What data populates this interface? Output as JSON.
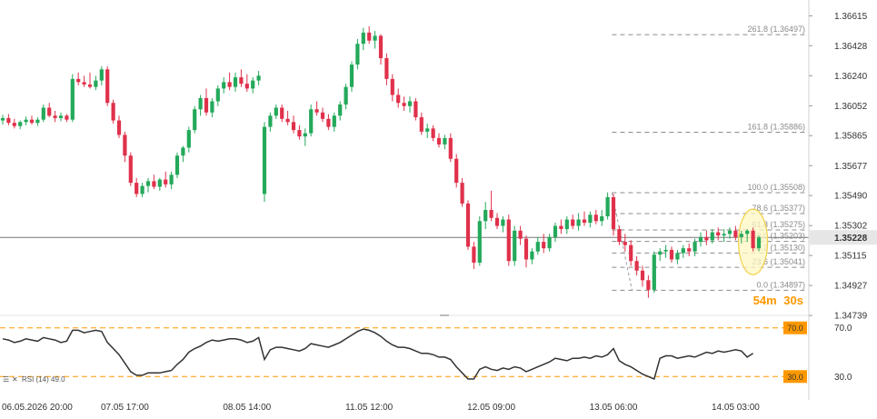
{
  "chart_data": {
    "type": "candlestick",
    "price_axis": {
      "ticks": [
        "1.36615",
        "1.36428",
        "1.36240",
        "1.36052",
        "1.35865",
        "1.35677",
        "1.35490",
        "1.35302",
        "1.35115",
        "1.34927",
        "1.34739"
      ],
      "range": [
        1.347,
        1.3668
      ]
    },
    "x_labels": [
      {
        "label": "06.05.2026 20:00",
        "index": 0
      },
      {
        "label": "07.05 17:00",
        "index": 21
      },
      {
        "label": "08.05 14:00",
        "index": 42
      },
      {
        "label": "11.05 12:00",
        "index": 63
      },
      {
        "label": "12.05 09:00",
        "index": 84
      },
      {
        "label": "13.05 06:00",
        "index": 105
      },
      {
        "label": "14.05 03:00",
        "index": 126
      }
    ],
    "current_price": {
      "value": 1.35228,
      "label": "1.35228"
    },
    "countdown": {
      "minutes": "54",
      "m": "m",
      "seconds": "30",
      "s": "s"
    },
    "fibonacci": {
      "x_start_index": 106,
      "x_end_index": 127,
      "levels": [
        {
          "label": "261.8 (1.36497)",
          "value": 1.36497
        },
        {
          "label": "161.8 (1.35886)",
          "value": 1.35886
        },
        {
          "label": "100.0 (1.35508)",
          "value": 1.35508
        },
        {
          "label": "78.6 (1.35377)",
          "value": 1.35377
        },
        {
          "label": "61.8 (1.35275)",
          "value": 1.35275
        },
        {
          "label": "50.0 (1.35203)",
          "value": 1.35203
        },
        {
          "label": "38.2 (1.35130)",
          "value": 1.3513
        },
        {
          "label": "23.6 (1.35041)",
          "value": 1.35041
        },
        {
          "label": "0.0 (1.34897)",
          "value": 1.34897
        }
      ]
    },
    "rsi": {
      "label": "RSI (14) 49.0",
      "upper": 70,
      "lower": 30,
      "upper_label": "70.0",
      "lower_label": "30.0",
      "tick_70": "70.0",
      "tick_30": "30.0",
      "range": [
        22,
        78
      ]
    },
    "candles": [
      [
        1.3596,
        1.35995,
        1.35935,
        1.35975
      ],
      [
        1.35975,
        1.36,
        1.3593,
        1.35945
      ],
      [
        1.35945,
        1.3597,
        1.3591,
        1.35925
      ],
      [
        1.35925,
        1.3596,
        1.35905,
        1.3595
      ],
      [
        1.3595,
        1.35985,
        1.3593,
        1.35965
      ],
      [
        1.35965,
        1.3599,
        1.35935,
        1.35945
      ],
      [
        1.35945,
        1.3598,
        1.35925,
        1.35965
      ],
      [
        1.35965,
        1.3606,
        1.3595,
        1.3604
      ],
      [
        1.3604,
        1.3607,
        1.3598,
        1.3599
      ],
      [
        1.3599,
        1.3602,
        1.3595,
        1.35975
      ],
      [
        1.35975,
        1.3601,
        1.35955,
        1.3599
      ],
      [
        1.3599,
        1.36,
        1.3595,
        1.35965
      ],
      [
        1.35965,
        1.3625,
        1.3595,
        1.3622
      ],
      [
        1.3622,
        1.3626,
        1.3618,
        1.362
      ],
      [
        1.362,
        1.3624,
        1.3617,
        1.36185
      ],
      [
        1.36185,
        1.3626,
        1.3616,
        1.3617
      ],
      [
        1.3617,
        1.3624,
        1.3615,
        1.3621
      ],
      [
        1.3621,
        1.363,
        1.3618,
        1.3628
      ],
      [
        1.3628,
        1.363,
        1.3605,
        1.3607
      ],
      [
        1.3607,
        1.3609,
        1.3594,
        1.3596
      ],
      [
        1.3596,
        1.3599,
        1.3585,
        1.3587
      ],
      [
        1.3587,
        1.3589,
        1.357,
        1.3574
      ],
      [
        1.3574,
        1.3576,
        1.3555,
        1.3557
      ],
      [
        1.3557,
        1.356,
        1.3548,
        1.355
      ],
      [
        1.355,
        1.3557,
        1.3548,
        1.3555
      ],
      [
        1.3555,
        1.356,
        1.3551,
        1.3558
      ],
      [
        1.3558,
        1.3562,
        1.3553,
        1.35545
      ],
      [
        1.35545,
        1.356,
        1.3552,
        1.3559
      ],
      [
        1.3559,
        1.3564,
        1.3554,
        1.3556
      ],
      [
        1.3556,
        1.3564,
        1.3553,
        1.3562
      ],
      [
        1.3562,
        1.3576,
        1.356,
        1.3574
      ],
      [
        1.3574,
        1.358,
        1.357,
        1.3579
      ],
      [
        1.3579,
        1.3592,
        1.3576,
        1.359
      ],
      [
        1.359,
        1.3605,
        1.3588,
        1.3603
      ],
      [
        1.3603,
        1.3612,
        1.3599,
        1.361
      ],
      [
        1.361,
        1.3616,
        1.3599,
        1.3601
      ],
      [
        1.3601,
        1.361,
        1.3598,
        1.3608
      ],
      [
        1.3608,
        1.3618,
        1.3605,
        1.3616
      ],
      [
        1.3616,
        1.3623,
        1.3613,
        1.362
      ],
      [
        1.362,
        1.3626,
        1.3615,
        1.3617
      ],
      [
        1.3617,
        1.3626,
        1.3614,
        1.3623
      ],
      [
        1.3623,
        1.3628,
        1.3617,
        1.3619
      ],
      [
        1.3619,
        1.3625,
        1.3614,
        1.3616
      ],
      [
        1.3616,
        1.3623,
        1.3613,
        1.3621
      ],
      [
        1.3621,
        1.3627,
        1.3618,
        1.3624
      ],
      [
        1.355,
        1.3595,
        1.3545,
        1.3592
      ],
      [
        1.3592,
        1.3601,
        1.3589,
        1.3599
      ],
      [
        1.3599,
        1.3606,
        1.3597,
        1.3604
      ],
      [
        1.3604,
        1.3606,
        1.3595,
        1.3597
      ],
      [
        1.3597,
        1.3602,
        1.3593,
        1.3595
      ],
      [
        1.3595,
        1.3599,
        1.3588,
        1.359
      ],
      [
        1.359,
        1.3593,
        1.3584,
        1.3586
      ],
      [
        1.3586,
        1.3591,
        1.358,
        1.3588
      ],
      [
        1.3588,
        1.3606,
        1.3586,
        1.3603
      ],
      [
        1.3603,
        1.3608,
        1.3599,
        1.3601
      ],
      [
        1.3601,
        1.3604,
        1.3595,
        1.3597
      ],
      [
        1.3597,
        1.36,
        1.359,
        1.3592
      ],
      [
        1.3592,
        1.3601,
        1.3589,
        1.3599
      ],
      [
        1.3599,
        1.3608,
        1.3596,
        1.3606
      ],
      [
        1.3606,
        1.3619,
        1.3603,
        1.3617
      ],
      [
        1.3617,
        1.3633,
        1.3614,
        1.3631
      ],
      [
        1.3631,
        1.3647,
        1.3628,
        1.3644
      ],
      [
        1.3644,
        1.3654,
        1.364,
        1.3651
      ],
      [
        1.3651,
        1.3655,
        1.3644,
        1.3646
      ],
      [
        1.3646,
        1.3652,
        1.3641,
        1.3649
      ],
      [
        1.3649,
        1.365,
        1.3631,
        1.3635
      ],
      [
        1.3635,
        1.3638,
        1.3618,
        1.3622
      ],
      [
        1.3622,
        1.3625,
        1.3608,
        1.3612
      ],
      [
        1.3612,
        1.3616,
        1.3604,
        1.3607
      ],
      [
        1.3607,
        1.3611,
        1.3602,
        1.3605
      ],
      [
        1.3605,
        1.3611,
        1.3601,
        1.3608
      ],
      [
        1.3608,
        1.361,
        1.3596,
        1.3598
      ],
      [
        1.3598,
        1.3601,
        1.3587,
        1.3589
      ],
      [
        1.3589,
        1.3594,
        1.3585,
        1.3591
      ],
      [
        1.3591,
        1.3593,
        1.3583,
        1.3585
      ],
      [
        1.3585,
        1.3588,
        1.3579,
        1.3581
      ],
      [
        1.3581,
        1.3587,
        1.3578,
        1.3585
      ],
      [
        1.3585,
        1.3588,
        1.357,
        1.3572
      ],
      [
        1.3572,
        1.3575,
        1.3554,
        1.3557
      ],
      [
        1.3557,
        1.356,
        1.3542,
        1.3544
      ],
      [
        1.3544,
        1.3546,
        1.3515,
        1.3517
      ],
      [
        1.3517,
        1.352,
        1.3503,
        1.3507
      ],
      [
        1.3507,
        1.3536,
        1.3505,
        1.3533
      ],
      [
        1.3533,
        1.3545,
        1.3528,
        1.354
      ],
      [
        1.354,
        1.3552,
        1.3533,
        1.3535
      ],
      [
        1.3535,
        1.3538,
        1.3528,
        1.353
      ],
      [
        1.353,
        1.3536,
        1.3526,
        1.3534
      ],
      [
        1.3534,
        1.3537,
        1.3505,
        1.3508
      ],
      [
        1.3508,
        1.353,
        1.3505,
        1.3527
      ],
      [
        1.3527,
        1.353,
        1.3518,
        1.3522
      ],
      [
        1.3522,
        1.3524,
        1.3504,
        1.3509
      ],
      [
        1.3509,
        1.3516,
        1.3506,
        1.3514
      ],
      [
        1.3514,
        1.3523,
        1.3512,
        1.352
      ],
      [
        1.352,
        1.3525,
        1.3513,
        1.3516
      ],
      [
        1.3516,
        1.3525,
        1.3514,
        1.3523
      ],
      [
        1.3523,
        1.3532,
        1.352,
        1.353
      ],
      [
        1.353,
        1.3534,
        1.3525,
        1.3528
      ],
      [
        1.3528,
        1.3536,
        1.3525,
        1.3534
      ],
      [
        1.3534,
        1.3537,
        1.3528,
        1.353
      ],
      [
        1.353,
        1.3538,
        1.3527,
        1.3534
      ],
      [
        1.3534,
        1.3539,
        1.353,
        1.3532
      ],
      [
        1.3532,
        1.3539,
        1.3529,
        1.3537
      ],
      [
        1.3537,
        1.354,
        1.3531,
        1.3533
      ],
      [
        1.3533,
        1.354,
        1.353,
        1.3536
      ],
      [
        1.3536,
        1.3551,
        1.3534,
        1.3548
      ],
      [
        1.3548,
        1.355,
        1.3524,
        1.3528
      ],
      [
        1.3528,
        1.353,
        1.3518,
        1.352
      ],
      [
        1.352,
        1.3525,
        1.3514,
        1.3518
      ],
      [
        1.3518,
        1.3521,
        1.3505,
        1.3508
      ],
      [
        1.3508,
        1.3511,
        1.3499,
        1.3502
      ],
      [
        1.3502,
        1.3505,
        1.3492,
        1.3496
      ],
      [
        1.3496,
        1.3499,
        1.3485,
        1.349
      ],
      [
        1.349,
        1.3514,
        1.3488,
        1.3512
      ],
      [
        1.3512,
        1.3516,
        1.3508,
        1.3514
      ],
      [
        1.3514,
        1.3518,
        1.351,
        1.3515
      ],
      [
        1.3515,
        1.3517,
        1.3507,
        1.3509
      ],
      [
        1.3509,
        1.3515,
        1.3506,
        1.3513
      ],
      [
        1.3513,
        1.3518,
        1.351,
        1.3516
      ],
      [
        1.3516,
        1.3519,
        1.3511,
        1.3514
      ],
      [
        1.3514,
        1.3522,
        1.3511,
        1.352
      ],
      [
        1.352,
        1.3526,
        1.3517,
        1.3523
      ],
      [
        1.3523,
        1.3527,
        1.3518,
        1.3521
      ],
      [
        1.3521,
        1.3528,
        1.3519,
        1.3526
      ],
      [
        1.3526,
        1.3529,
        1.3521,
        1.3524
      ],
      [
        1.3524,
        1.3528,
        1.352,
        1.3525
      ],
      [
        1.3525,
        1.3529,
        1.3522,
        1.3527
      ],
      [
        1.3527,
        1.353,
        1.3521,
        1.3523
      ],
      [
        1.3523,
        1.3527,
        1.3519,
        1.3525
      ],
      [
        1.3525,
        1.3528,
        1.352,
        1.3527
      ],
      [
        1.3527,
        1.3529,
        1.3514,
        1.3516
      ],
      [
        1.3516,
        1.3524,
        1.3514,
        1.35228
      ]
    ],
    "rsi_values": [
      61,
      60,
      58,
      59,
      61,
      60,
      59,
      62,
      61,
      60,
      58,
      59,
      68,
      68,
      66,
      67,
      68,
      67,
      58,
      53,
      48,
      41,
      34,
      31,
      31,
      33,
      33,
      33,
      34,
      35,
      40,
      44,
      50,
      53,
      55,
      58,
      60,
      59,
      60,
      61,
      61,
      60,
      58,
      59,
      62,
      44,
      52,
      54,
      54,
      53,
      52,
      51,
      53,
      57,
      56,
      55,
      54,
      56,
      58,
      61,
      64,
      67,
      69,
      68,
      66,
      63,
      59,
      56,
      54,
      54,
      53,
      51,
      49,
      49,
      48,
      46,
      46,
      44,
      38,
      33,
      28,
      28,
      36,
      38,
      36,
      35,
      37,
      36,
      38,
      37,
      34,
      36,
      38,
      40,
      42,
      45,
      44,
      43,
      45,
      45,
      46,
      45,
      47,
      46,
      48,
      53,
      43,
      40,
      38,
      35,
      32,
      30,
      28,
      45,
      47,
      47,
      45,
      46,
      47,
      46,
      48,
      50,
      49,
      51,
      50,
      51,
      52,
      51,
      46,
      49
    ]
  },
  "colors": {
    "up": "#23a95a",
    "down": "#e0314b",
    "price_line": "#777777",
    "current_tag_bg": "#e6e6e6",
    "rsi_line": "#333333",
    "rsi_band": "#ff9800",
    "fib_line": "#8c8c8c",
    "timer": "#ff9800",
    "highlight_fill": "#fff7c2",
    "highlight_stroke": "#f2d24a"
  }
}
